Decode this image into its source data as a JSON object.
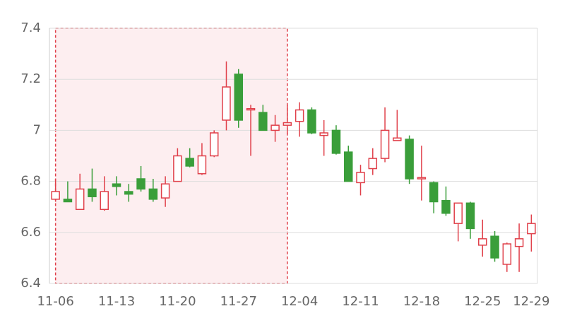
{
  "chart_data": {
    "type": "candlestick",
    "categories": [
      "11-06",
      null,
      null,
      null,
      null,
      "11-13",
      null,
      null,
      null,
      null,
      "11-20",
      null,
      null,
      null,
      null,
      "11-27",
      null,
      null,
      null,
      null,
      "12-04",
      null,
      null,
      null,
      null,
      "12-11",
      null,
      null,
      null,
      null,
      "12-18",
      null,
      null,
      null,
      null,
      "12-25",
      null,
      null,
      null,
      "12-29"
    ],
    "open": [
      6.73,
      6.73,
      6.69,
      6.77,
      6.69,
      6.79,
      6.76,
      6.81,
      6.77,
      6.735,
      6.8,
      6.89,
      6.83,
      6.9,
      7.04,
      7.22,
      7.08,
      7.07,
      7.0,
      7.02,
      7.035,
      7.08,
      6.98,
      7.0,
      6.915,
      6.795,
      6.85,
      6.89,
      6.96,
      6.965,
      6.81,
      6.795,
      6.725,
      6.635,
      6.715,
      6.55,
      6.585,
      6.475,
      6.545,
      6.595
    ],
    "high": [
      6.81,
      6.8,
      6.83,
      6.85,
      6.82,
      6.82,
      6.79,
      6.86,
      6.81,
      6.82,
      6.93,
      6.93,
      6.95,
      7.0,
      7.27,
      7.24,
      7.1,
      7.1,
      7.06,
      7.1,
      7.11,
      7.09,
      7.04,
      7.02,
      6.94,
      6.865,
      6.93,
      7.09,
      7.08,
      6.98,
      6.94,
      6.8,
      6.78,
      6.715,
      6.72,
      6.65,
      6.605,
      6.56,
      6.635,
      6.67
    ],
    "low": [
      6.72,
      6.72,
      6.69,
      6.72,
      6.685,
      6.745,
      6.72,
      6.76,
      6.72,
      6.7,
      6.8,
      6.855,
      6.825,
      6.895,
      7.0,
      7.01,
      6.9,
      7.0,
      6.955,
      6.985,
      6.975,
      6.985,
      6.9,
      6.905,
      6.8,
      6.745,
      6.825,
      6.875,
      6.96,
      6.79,
      6.725,
      6.675,
      6.665,
      6.565,
      6.575,
      6.505,
      6.485,
      6.445,
      6.445,
      6.525
    ],
    "close": [
      6.76,
      6.72,
      6.77,
      6.74,
      6.76,
      6.78,
      6.75,
      6.77,
      6.73,
      6.79,
      6.9,
      6.86,
      6.9,
      6.99,
      7.17,
      7.04,
      7.085,
      7.0,
      7.02,
      7.03,
      7.08,
      6.99,
      6.99,
      6.91,
      6.8,
      6.835,
      6.89,
      7.0,
      6.97,
      6.81,
      6.815,
      6.72,
      6.675,
      6.715,
      6.615,
      6.575,
      6.5,
      6.555,
      6.575,
      6.635
    ],
    "up_color": "#e0404a",
    "down_color": "#3a9e3a",
    "ylim": [
      6.4,
      7.4
    ],
    "yticks": [
      6.4,
      6.6,
      6.8,
      7,
      7.2,
      7.4
    ],
    "grid": true,
    "highlight_range": [
      0,
      19
    ]
  }
}
